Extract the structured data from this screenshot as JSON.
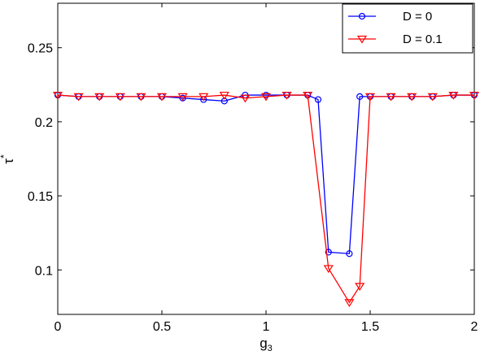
{
  "chart_data": {
    "type": "line",
    "xlabel": "g",
    "xlabel_sub": "3",
    "ylabel": "τ",
    "ylabel_sup": "*",
    "xlim": [
      0,
      2
    ],
    "ylim": [
      0.07,
      0.28
    ],
    "xticks": [
      0,
      0.5,
      1,
      1.5,
      2
    ],
    "xtick_labels": [
      "0",
      "0.5",
      "1",
      "1.5",
      "2"
    ],
    "yticks": [
      0.1,
      0.15,
      0.2,
      0.25
    ],
    "ytick_labels": [
      "0.1",
      "0.15",
      "0.2",
      "0.25"
    ],
    "grid": false,
    "legend_position": "top-right",
    "series": [
      {
        "name": "D = 0",
        "color": "#0000ff",
        "marker": "circle",
        "x": [
          0,
          0.1,
          0.2,
          0.3,
          0.4,
          0.5,
          0.6,
          0.7,
          0.8,
          0.9,
          1.0,
          1.1,
          1.2,
          1.25,
          1.3,
          1.4,
          1.45,
          1.5,
          1.6,
          1.7,
          1.8,
          1.9,
          2.0
        ],
        "y": [
          0.218,
          0.217,
          0.217,
          0.217,
          0.217,
          0.217,
          0.216,
          0.215,
          0.214,
          0.218,
          0.218,
          0.218,
          0.218,
          0.215,
          0.112,
          0.111,
          0.217,
          0.217,
          0.217,
          0.217,
          0.217,
          0.218,
          0.218
        ]
      },
      {
        "name": "D = 0.1",
        "color": "#ff0000",
        "marker": "triangle-down",
        "x": [
          0,
          0.1,
          0.2,
          0.3,
          0.4,
          0.5,
          0.6,
          0.7,
          0.8,
          0.9,
          1.0,
          1.1,
          1.2,
          1.3,
          1.4,
          1.45,
          1.5,
          1.6,
          1.7,
          1.8,
          1.9,
          2.0
        ],
        "y": [
          0.218,
          0.217,
          0.217,
          0.217,
          0.217,
          0.217,
          0.217,
          0.217,
          0.218,
          0.216,
          0.217,
          0.218,
          0.218,
          0.101,
          0.078,
          0.089,
          0.217,
          0.217,
          0.217,
          0.217,
          0.218,
          0.218
        ]
      }
    ]
  }
}
